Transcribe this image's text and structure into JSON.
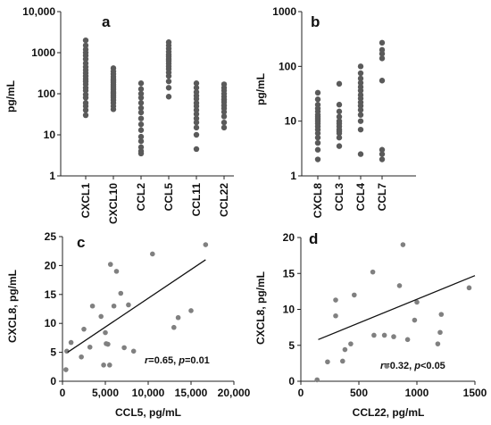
{
  "chart_data": [
    {
      "panel": "a",
      "type": "scatter",
      "scale": "log",
      "ylabel": "pg/mL",
      "ylim": [
        1,
        10000
      ],
      "yticks": [
        1,
        10,
        100,
        1000,
        10000
      ],
      "ytick_labels": [
        "1",
        "10",
        "100",
        "1000",
        "10,000"
      ],
      "categories": [
        "CXCL1",
        "CXCL10",
        "CCL2",
        "CCL5",
        "CCL11",
        "CCL22"
      ],
      "series": [
        {
          "category": "CXCL1",
          "values": [
            2000,
            1500,
            1200,
            1000,
            850,
            700,
            550,
            450,
            380,
            320,
            270,
            230,
            200,
            170,
            140,
            120,
            95,
            80,
            60,
            50,
            40,
            30
          ]
        },
        {
          "category": "CXCL10",
          "values": [
            420,
            350,
            300,
            260,
            230,
            210,
            190,
            170,
            155,
            140,
            125,
            110,
            100,
            90,
            80,
            70,
            60,
            50,
            42
          ]
        },
        {
          "category": "CCL2",
          "values": [
            180,
            130,
            100,
            80,
            60,
            45,
            35,
            25,
            18,
            13,
            9,
            7,
            5,
            4,
            3.5
          ]
        },
        {
          "category": "CCL5",
          "values": [
            1800,
            1500,
            1250,
            1050,
            900,
            800,
            700,
            620,
            540,
            460,
            400,
            330,
            270,
            200,
            140,
            85
          ]
        },
        {
          "category": "CCL11",
          "values": [
            180,
            140,
            110,
            90,
            75,
            60,
            50,
            40,
            32,
            25,
            20,
            15,
            10,
            4.5
          ]
        },
        {
          "category": "CCL22",
          "values": [
            170,
            140,
            120,
            100,
            85,
            72,
            62,
            52,
            44,
            36,
            28,
            20,
            15
          ]
        }
      ]
    },
    {
      "panel": "b",
      "type": "scatter",
      "scale": "log",
      "ylabel": "pg/mL",
      "ylim": [
        1,
        1000
      ],
      "yticks": [
        1,
        10,
        100,
        1000
      ],
      "ytick_labels": [
        "1",
        "10",
        "100",
        "1000"
      ],
      "categories": [
        "CXCL8",
        "CCL3",
        "CCL4",
        "CCL7"
      ],
      "series": [
        {
          "category": "CXCL8",
          "values": [
            33,
            25,
            20,
            17,
            15,
            13,
            12,
            11,
            10,
            9,
            8,
            7,
            6,
            5,
            4,
            3,
            2
          ]
        },
        {
          "category": "CCL3",
          "values": [
            48,
            20,
            15,
            12,
            10,
            9,
            8,
            7,
            6.5,
            6,
            5,
            3.5
          ]
        },
        {
          "category": "CCL4",
          "values": [
            100,
            75,
            60,
            50,
            42,
            36,
            30,
            26,
            22,
            19,
            16,
            13,
            10,
            7,
            2.5
          ]
        },
        {
          "category": "CCL7",
          "values": [
            270,
            200,
            170,
            140,
            55,
            3,
            2.5,
            2
          ]
        }
      ]
    },
    {
      "panel": "c",
      "type": "scatter",
      "xlabel": "CCL5, pg/mL",
      "ylabel": "CXCL8, pg/mL",
      "xlim": [
        0,
        20000
      ],
      "ylim": [
        0,
        25
      ],
      "xticks": [
        0,
        5000,
        10000,
        15000,
        20000
      ],
      "xtick_labels": [
        "0",
        "5,000",
        "10,000",
        "15,000",
        "20,000"
      ],
      "yticks": [
        0,
        5,
        10,
        15,
        20,
        25
      ],
      "ytick_labels": [
        "0",
        "5",
        "10",
        "15",
        "20",
        "25"
      ],
      "points": [
        {
          "x": 400,
          "y": 2
        },
        {
          "x": 500,
          "y": 5.2
        },
        {
          "x": 1000,
          "y": 6.7
        },
        {
          "x": 2200,
          "y": 4.2
        },
        {
          "x": 2500,
          "y": 9
        },
        {
          "x": 3200,
          "y": 5.9
        },
        {
          "x": 3500,
          "y": 13
        },
        {
          "x": 4500,
          "y": 11.2
        },
        {
          "x": 4800,
          "y": 2.8
        },
        {
          "x": 5000,
          "y": 8.4
        },
        {
          "x": 5100,
          "y": 6.5
        },
        {
          "x": 5300,
          "y": 6.4
        },
        {
          "x": 5500,
          "y": 2.8
        },
        {
          "x": 5600,
          "y": 20.2
        },
        {
          "x": 6000,
          "y": 13
        },
        {
          "x": 6300,
          "y": 19
        },
        {
          "x": 6800,
          "y": 15.2
        },
        {
          "x": 7200,
          "y": 5.8
        },
        {
          "x": 7700,
          "y": 13.2
        },
        {
          "x": 8300,
          "y": 5.2
        },
        {
          "x": 10500,
          "y": 22
        },
        {
          "x": 13000,
          "y": 9.3
        },
        {
          "x": 13500,
          "y": 11
        },
        {
          "x": 15000,
          "y": 12.2
        },
        {
          "x": 16700,
          "y": 23.6
        }
      ],
      "fit": {
        "x": [
          600,
          16700
        ],
        "y": [
          5,
          21
        ]
      },
      "annotation": {
        "r_label": "r",
        "r_value": "=0.65, ",
        "p_label": "p",
        "p_value": "=0.01"
      }
    },
    {
      "panel": "d",
      "type": "scatter",
      "xlabel": "CCL22, pg/mL",
      "ylabel": "CXCL8, pg/mL",
      "xlim": [
        0,
        1500
      ],
      "ylim": [
        0,
        20
      ],
      "xticks": [
        0,
        500,
        1000,
        1500
      ],
      "xtick_labels": [
        "0",
        "500",
        "1000",
        "1500"
      ],
      "yticks": [
        0,
        5,
        10,
        15,
        20
      ],
      "ytick_labels": [
        "0",
        "5",
        "10",
        "15",
        "20"
      ],
      "points": [
        {
          "x": 140,
          "y": 0.2
        },
        {
          "x": 230,
          "y": 2.7
        },
        {
          "x": 300,
          "y": 11.3
        },
        {
          "x": 300,
          "y": 9.1
        },
        {
          "x": 360,
          "y": 2.8
        },
        {
          "x": 380,
          "y": 4.4
        },
        {
          "x": 430,
          "y": 5.2
        },
        {
          "x": 460,
          "y": 12
        },
        {
          "x": 620,
          "y": 15.2
        },
        {
          "x": 630,
          "y": 6.4
        },
        {
          "x": 720,
          "y": 6.4
        },
        {
          "x": 740,
          "y": 2.1
        },
        {
          "x": 800,
          "y": 6.2
        },
        {
          "x": 850,
          "y": 13.3
        },
        {
          "x": 880,
          "y": 19
        },
        {
          "x": 920,
          "y": 5.8
        },
        {
          "x": 980,
          "y": 8.5
        },
        {
          "x": 1000,
          "y": 11
        },
        {
          "x": 1180,
          "y": 5.2
        },
        {
          "x": 1200,
          "y": 6.8
        },
        {
          "x": 1210,
          "y": 9.3
        },
        {
          "x": 1450,
          "y": 13
        }
      ],
      "fit": {
        "x": [
          150,
          1500
        ],
        "y": [
          5.8,
          14.7
        ]
      },
      "annotation": {
        "r_label": "r",
        "r_value": "=0.32, ",
        "p_label": "p",
        "p_value": "<0.05"
      }
    }
  ]
}
